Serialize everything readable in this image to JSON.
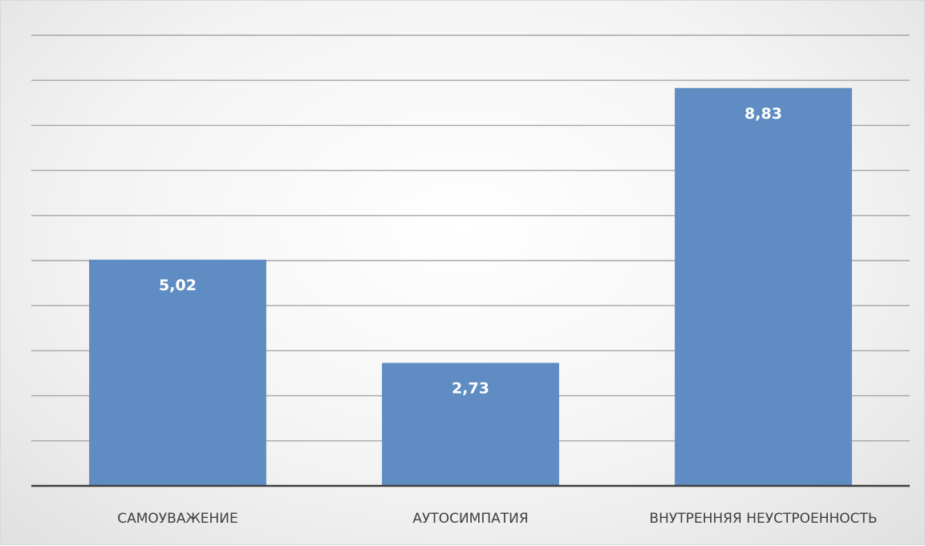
{
  "chart_data": {
    "type": "bar",
    "categories": [
      "САМОУВАЖЕНИЕ",
      "АУТОСИМПАТИЯ",
      "ВНУТРЕННЯЯ НЕУСТРОЕННОСТЬ"
    ],
    "values": [
      5.02,
      2.73,
      8.83
    ],
    "value_labels": [
      "5,02",
      "2,73",
      "8,83"
    ],
    "ylim": [
      0,
      10
    ],
    "y_major_unit": 1,
    "grid": true,
    "legend": "none",
    "bar_color": "#5f8dc3",
    "gridline_color": "#a6a6a6",
    "axis_color": "#404040",
    "label_color": "#ffffff",
    "category_label_color": "#404040"
  }
}
